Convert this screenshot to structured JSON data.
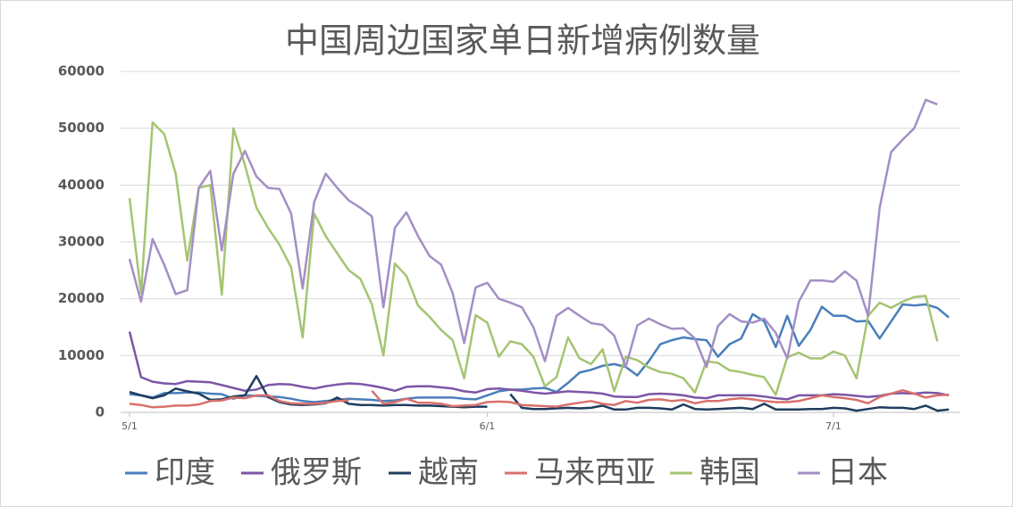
{
  "chart_data": {
    "type": "line",
    "title": "中国周边国家单日新增病例数量",
    "categories": [
      "5/1",
      null,
      null,
      null,
      null,
      null,
      null,
      null,
      null,
      null,
      null,
      null,
      null,
      null,
      null,
      null,
      null,
      null,
      null,
      null,
      null,
      null,
      null,
      null,
      null,
      null,
      null,
      null,
      null,
      null,
      null,
      "6/1",
      null,
      null,
      null,
      null,
      null,
      null,
      null,
      null,
      null,
      null,
      null,
      null,
      null,
      null,
      null,
      null,
      null,
      null,
      null,
      null,
      null,
      null,
      null,
      null,
      null,
      null,
      null,
      null,
      null,
      "7/1",
      null,
      null,
      null,
      null,
      null,
      null,
      null,
      null,
      null,
      null
    ],
    "ylim": [
      0,
      60000
    ],
    "yticks": [
      0,
      10000,
      20000,
      30000,
      40000,
      50000,
      60000
    ],
    "grid": true,
    "series": [
      {
        "name": "印度",
        "color": "#4a7ebb",
        "values": [
          3200,
          3000,
          2600,
          3400,
          3400,
          3500,
          3500,
          3300,
          3200,
          2400,
          3000,
          2900,
          2800,
          2700,
          2400,
          2000,
          1800,
          2000,
          2200,
          2400,
          2300,
          2200,
          2000,
          2100,
          2400,
          2600,
          2600,
          2600,
          2600,
          2400,
          2300,
          3000,
          3700,
          4000,
          4000,
          4200,
          4300,
          3600,
          5200,
          7000,
          7500,
          8200,
          8500,
          8000,
          6500,
          9000,
          12000,
          12700,
          13200,
          12900,
          12700,
          9800,
          12000,
          13000,
          17300,
          16000,
          11500,
          17000,
          11700,
          14500,
          18600,
          17000,
          17000,
          16000,
          16100,
          13000,
          16000,
          19000,
          18800,
          19000,
          18400,
          16700
        ]
      },
      {
        "name": "俄罗斯",
        "color": "#7b56a6",
        "values": [
          14200,
          6200,
          5400,
          5100,
          5000,
          5500,
          5400,
          5300,
          4800,
          4300,
          3800,
          4000,
          4800,
          5000,
          4900,
          4500,
          4200,
          4600,
          4900,
          5100,
          5000,
          4700,
          4300,
          3800,
          4500,
          4600,
          4600,
          4400,
          4200,
          3700,
          3500,
          4100,
          4200,
          4000,
          3800,
          3500,
          3300,
          3500,
          3700,
          3600,
          3500,
          3300,
          2800,
          2700,
          2700,
          3200,
          3300,
          3200,
          3000,
          2600,
          2500,
          3000,
          3000,
          3000,
          3000,
          2800,
          2500,
          2300,
          3000,
          3000,
          3000,
          3200,
          3100,
          2900,
          2700,
          2900,
          3300,
          3400,
          3300,
          3500,
          3400,
          3000
        ]
      },
      {
        "name": "越南",
        "color": "#1f3d5f",
        "values": [
          3600,
          3000,
          2500,
          3000,
          4200,
          3700,
          3300,
          2200,
          2300,
          2800,
          3000,
          6400,
          2700,
          1800,
          1400,
          1300,
          1400,
          1600,
          2600,
          1500,
          1300,
          1300,
          1200,
          1300,
          1300,
          1200,
          1200,
          1100,
          1000,
          900,
          1000,
          1000,
          null,
          3200,
          800,
          600,
          600,
          700,
          800,
          700,
          800,
          1200,
          500,
          500,
          800,
          800,
          700,
          500,
          1400,
          600,
          500,
          600,
          700,
          800,
          600,
          1500,
          500,
          500,
          500,
          600,
          600,
          800,
          700,
          300,
          600,
          900,
          800,
          800,
          600,
          1200,
          300,
          500
        ]
      },
      {
        "name": "马来西亚",
        "color": "#d9706c",
        "values": [
          1500,
          1300,
          900,
          1000,
          1200,
          1200,
          1400,
          2000,
          2100,
          2600,
          2500,
          3000,
          3000,
          2000,
          1600,
          1500,
          1500,
          1700,
          2000,
          2100,
          null,
          3800,
          1500,
          1800,
          2400,
          1700,
          1700,
          1500,
          1100,
          1200,
          1300,
          1800,
          1900,
          1800,
          1300,
          1200,
          1100,
          1000,
          1400,
          1700,
          2000,
          1500,
          1300,
          2000,
          1700,
          2200,
          2300,
          2000,
          2200,
          1600,
          2000,
          2000,
          2300,
          2500,
          2300,
          2000,
          1800,
          1800,
          2000,
          2500,
          3000,
          2700,
          2500,
          2200,
          1600,
          2700,
          3300,
          3900,
          3300,
          2600,
          3000,
          3100
        ]
      },
      {
        "name": "韩国",
        "color": "#a5c472",
        "values": [
          37700,
          21000,
          51000,
          49000,
          42000,
          26700,
          39500,
          40000,
          20700,
          50000,
          43500,
          36000,
          32500,
          29500,
          25500,
          13200,
          35000,
          31000,
          28000,
          25000,
          23500,
          19000,
          10000,
          26200,
          24000,
          18800,
          16800,
          14500,
          12700,
          6000,
          17100,
          15800,
          9800,
          12500,
          12000,
          9800,
          4600,
          6200,
          13200,
          9500,
          8500,
          11100,
          3700,
          9800,
          9200,
          7900,
          7100,
          6800,
          6000,
          3500,
          9000,
          8700,
          7400,
          7100,
          6600,
          6200,
          3100,
          9700,
          10500,
          9500,
          9500,
          10700,
          10000,
          6000,
          17000,
          19300,
          18400,
          19500,
          20300,
          20500,
          12500,
          null
        ]
      },
      {
        "name": "日本",
        "color": "#a48fc4",
        "values": [
          27000,
          19500,
          30500,
          26000,
          20800,
          21500,
          39500,
          42500,
          28500,
          42000,
          46000,
          41500,
          39500,
          39300,
          35000,
          21800,
          37000,
          42000,
          39500,
          37300,
          36000,
          34500,
          18500,
          32500,
          35200,
          31000,
          27500,
          26000,
          21000,
          12200,
          22000,
          22800,
          20000,
          19300,
          18500,
          15000,
          9000,
          17000,
          18400,
          17000,
          15700,
          15400,
          13500,
          8000,
          15300,
          16500,
          15500,
          14700,
          14800,
          13000,
          8000,
          15200,
          17300,
          16000,
          15800,
          16500,
          14000,
          9500,
          19500,
          23200,
          23200,
          23000,
          24800,
          23200,
          17000,
          36000,
          45800,
          48000,
          50000,
          55000,
          54200,
          null
        ]
      }
    ]
  }
}
